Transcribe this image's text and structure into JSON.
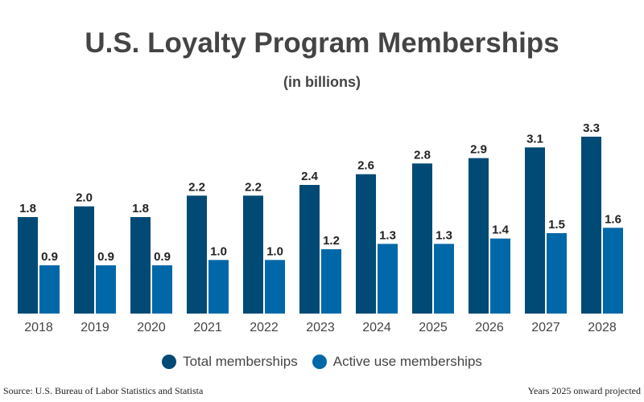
{
  "chart_data": {
    "type": "bar",
    "title": "U.S. Loyalty Program Memberships",
    "subtitle": "(in billions)",
    "categories": [
      "2018",
      "2019",
      "2020",
      "2021",
      "2022",
      "2023",
      "2024",
      "2025",
      "2026",
      "2027",
      "2028"
    ],
    "series": [
      {
        "name": "Total memberships",
        "color": "#004a75",
        "values": [
          1.8,
          2.0,
          1.8,
          2.2,
          2.2,
          2.4,
          2.6,
          2.8,
          2.9,
          3.1,
          3.3
        ]
      },
      {
        "name": "Active use memberships",
        "color": "#0068a8",
        "values": [
          0.9,
          0.9,
          0.9,
          1.0,
          1.0,
          1.2,
          1.3,
          1.3,
          1.4,
          1.5,
          1.6
        ]
      }
    ],
    "ylim": [
      0,
      3.3
    ],
    "grid": false,
    "legend": "bottom"
  },
  "footer": {
    "source": "Source: U.S. Bureau of Labor Statistics and Statista",
    "note": "Years 2025 onward projected"
  }
}
